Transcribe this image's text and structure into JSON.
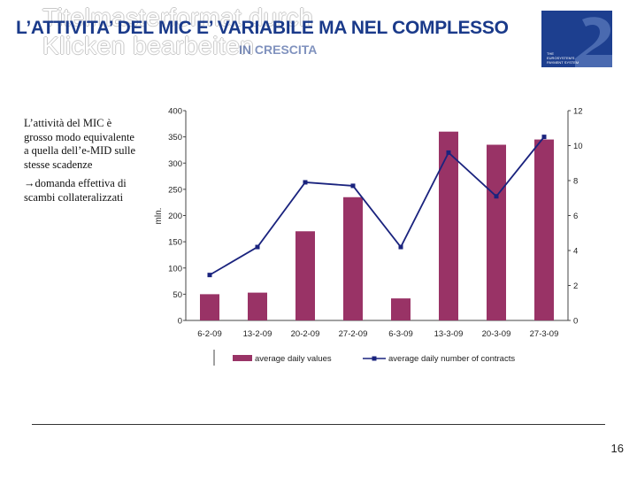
{
  "ghost_title": "Titelmasterformat durch Klicken bearbeiten",
  "title": "L’ATTIVITA’ DEL MIC E’ VARIABILE MA NEL COMPLESSO",
  "title_fragment": "IN CRESCITA",
  "side_text": {
    "p1": "L’attività del MIC è grosso modo equivalente a quella dell’e-MID sulle stesse scadenze",
    "arrow": "→",
    "p2": "domanda effettiva di scambi collateralizzati"
  },
  "page_number": "16",
  "colors": {
    "brand": "#1d3f8f",
    "bar": "#993366",
    "line": "#1a237e"
  },
  "chart_data": {
    "type": "bar",
    "categories": [
      "6-2-09",
      "13-2-09",
      "20-2-09",
      "27-2-09",
      "6-3-09",
      "13-3-09",
      "20-3-09",
      "27-3-09"
    ],
    "ylabel": "mln.",
    "y_left_ticks": [
      "0",
      "50",
      "100",
      "150",
      "200",
      "250",
      "300",
      "350",
      "400"
    ],
    "y_right_ticks": [
      "0",
      "2",
      "4",
      "6",
      "8",
      "10",
      "12"
    ],
    "ylim": [
      0,
      400
    ],
    "ylim_right": [
      0,
      12
    ],
    "series": [
      {
        "name": "average daily values",
        "type": "bar",
        "axis": "left",
        "values": [
          50,
          53,
          170,
          235,
          42,
          360,
          335,
          345
        ]
      },
      {
        "name": "average daily number of contracts",
        "type": "line",
        "axis": "right",
        "values": [
          2.6,
          4.2,
          7.9,
          7.7,
          4.2,
          9.6,
          7.1,
          10.5
        ]
      }
    ],
    "legend": "bottom"
  }
}
